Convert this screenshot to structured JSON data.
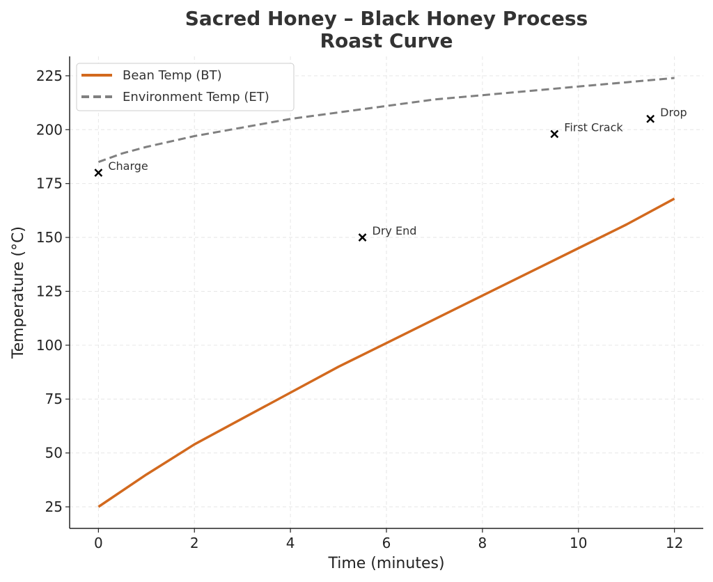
{
  "chart_data": {
    "type": "line",
    "title": [
      "Sacred Honey – Black Honey Process",
      "Roast Curve"
    ],
    "xlabel": "Time (minutes)",
    "ylabel": "Temperature (°C)",
    "xlim": [
      -0.6,
      12.6
    ],
    "ylim": [
      15,
      234
    ],
    "xticks": [
      0,
      2,
      4,
      6,
      8,
      10,
      12
    ],
    "yticks": [
      25,
      50,
      75,
      100,
      125,
      150,
      175,
      200,
      225
    ],
    "grid": true,
    "legend_position": "top-left",
    "series": [
      {
        "name": "Bean Temp (BT)",
        "color": "#d2691e",
        "style": "solid",
        "x": [
          0,
          1,
          2,
          3,
          4,
          5,
          6,
          7,
          8,
          9,
          10,
          11,
          12
        ],
        "y": [
          25,
          40,
          54,
          66,
          78,
          90,
          101,
          112,
          123,
          134,
          145,
          156,
          168
        ]
      },
      {
        "name": "Environment Temp (ET)",
        "color": "#808080",
        "style": "dashed",
        "x": [
          0,
          0.5,
          1,
          2,
          3,
          4,
          5,
          6,
          7,
          8,
          9,
          10,
          11,
          12
        ],
        "y": [
          185,
          189,
          192,
          197,
          201,
          205,
          208,
          211,
          214,
          216,
          218,
          220,
          222,
          224
        ]
      }
    ],
    "annotations": [
      {
        "label": "Charge",
        "x": 0,
        "y": 180
      },
      {
        "label": "Dry End",
        "x": 5.5,
        "y": 150
      },
      {
        "label": "First Crack",
        "x": 9.5,
        "y": 198
      },
      {
        "label": "Drop",
        "x": 11.5,
        "y": 205
      }
    ]
  }
}
